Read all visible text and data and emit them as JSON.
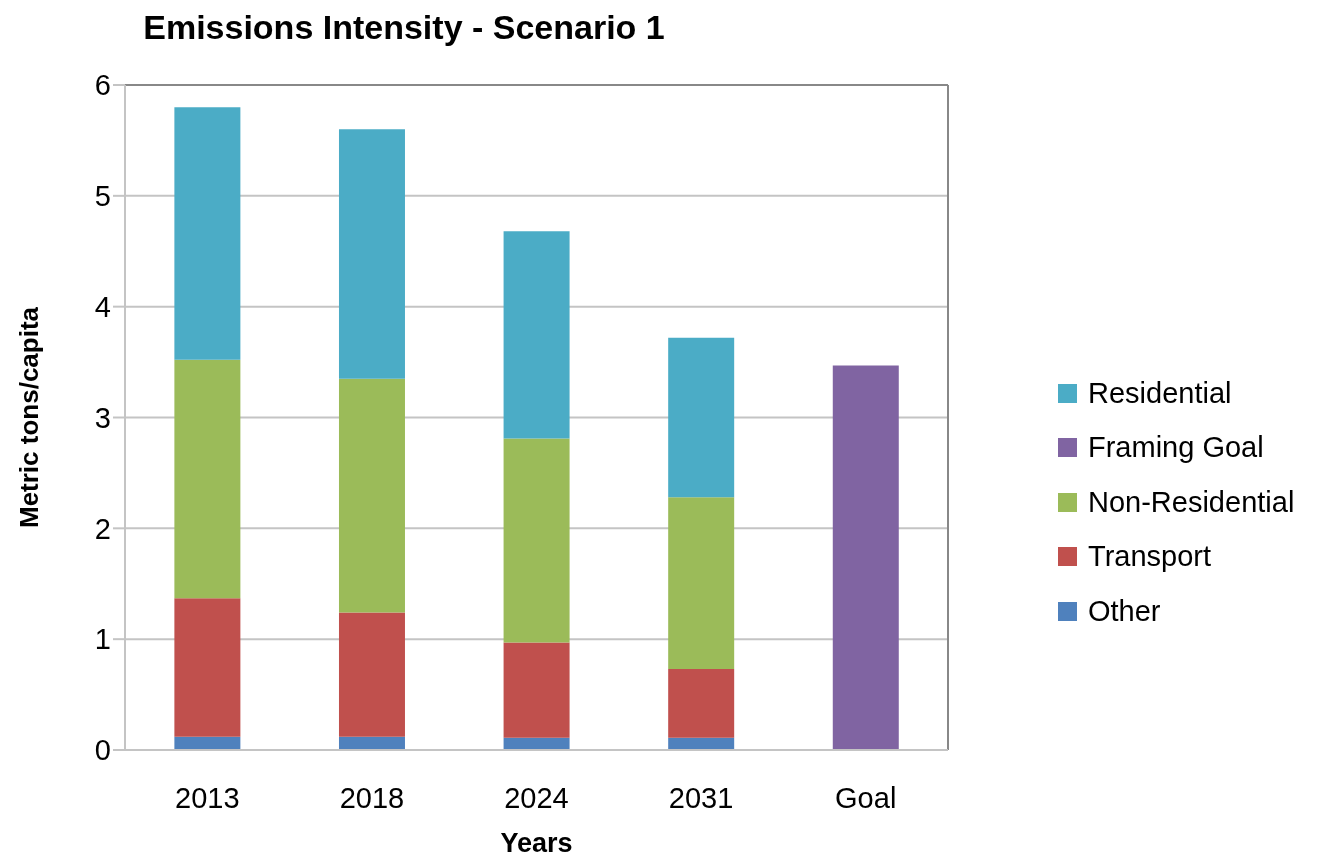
{
  "chart_data": {
    "type": "bar",
    "title": "Emissions Intensity - Scenario 1",
    "xlabel": "Years",
    "ylabel": "Metric tons/capita",
    "categories": [
      "2013",
      "2018",
      "2024",
      "2031",
      "Goal"
    ],
    "series": [
      {
        "name": "Other",
        "color": "#4f81bd",
        "values": [
          0.12,
          0.12,
          0.11,
          0.11,
          null
        ]
      },
      {
        "name": "Transport",
        "color": "#c0504d",
        "values": [
          1.25,
          1.12,
          0.86,
          0.62,
          null
        ]
      },
      {
        "name": "Non-Residential",
        "color": "#9bbb59",
        "values": [
          2.15,
          2.11,
          1.84,
          1.55,
          null
        ]
      },
      {
        "name": "Framing Goal",
        "color": "#8064a2",
        "values": [
          null,
          null,
          null,
          null,
          3.47
        ]
      },
      {
        "name": "Residential",
        "color": "#4bacc6",
        "values": [
          2.28,
          2.25,
          1.87,
          1.44,
          null
        ]
      }
    ],
    "stacked": true,
    "ylim": [
      0,
      6
    ],
    "yticks": [
      0,
      1,
      2,
      3,
      4,
      5,
      6
    ],
    "grid": "y",
    "legend": "right"
  }
}
